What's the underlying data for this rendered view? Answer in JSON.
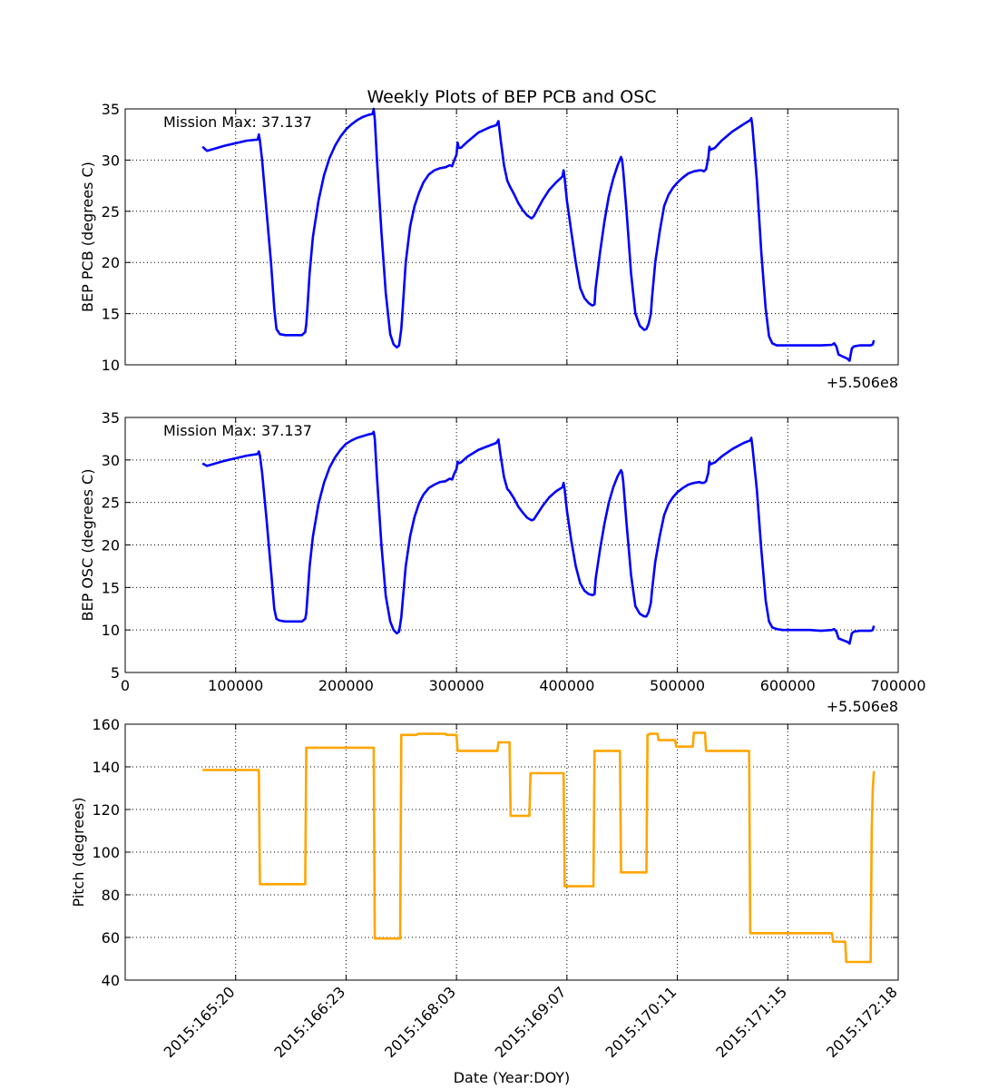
{
  "title": "Weekly Plots of BEP PCB and OSC",
  "colors": {
    "pcb": "#0000ff",
    "osc": "#0000ff",
    "pitch": "#ffa500",
    "grid": "#000000"
  },
  "chart_data": [
    {
      "type": "line",
      "ylabel": "BEP PCB (degrees C)",
      "annotation": "Mission Max: 37.137",
      "offset_label": "+5.506e8",
      "xlim": [
        0,
        700000
      ],
      "ylim": [
        10,
        35
      ],
      "xticks": [
        0,
        100000,
        200000,
        300000,
        400000,
        500000,
        600000,
        700000
      ],
      "yticks": [
        10,
        15,
        20,
        25,
        30,
        35
      ],
      "show_xtick_labels": false,
      "grid": true,
      "series": [
        {
          "x": [
            70000,
            74000,
            90000,
            110000,
            120000,
            121000,
            122000,
            124000,
            128000,
            132000,
            135000,
            137000,
            140000,
            145000,
            150000,
            160000,
            163000,
            164000,
            165000,
            167000,
            170000,
            175000,
            180000,
            185000,
            190000,
            195000,
            200000,
            205000,
            210000,
            215000,
            220000,
            224000,
            225000,
            226000,
            228000,
            232000,
            236000,
            240000,
            243000,
            246000,
            248000,
            250000,
            251000,
            254000,
            258000,
            262000,
            266000,
            270000,
            275000,
            280000,
            285000,
            290000,
            294000,
            296000,
            298000,
            300000,
            301000,
            302000,
            304000,
            310000,
            320000,
            330000,
            336000,
            338000,
            340000,
            343000,
            346000,
            348000,
            352000,
            356000,
            360000,
            364000,
            368000,
            370000,
            374000,
            378000,
            384000,
            390000,
            396000,
            397000,
            398000,
            400000,
            404000,
            408000,
            412000,
            416000,
            420000,
            423000,
            425000,
            426000,
            430000,
            434000,
            438000,
            442000,
            446000,
            449000,
            450000,
            451000,
            454000,
            458000,
            462000,
            466000,
            470000,
            472000,
            474000,
            476000,
            477000,
            480000,
            484000,
            488000,
            492000,
            496000,
            500000,
            505000,
            510000,
            515000,
            520000,
            522000,
            524000,
            526000,
            528000,
            529000,
            530000,
            534000,
            540000,
            550000,
            560000,
            566000,
            567000,
            568000,
            572000,
            576000,
            580000,
            583000,
            586000,
            590000,
            595000,
            600000,
            610000,
            620000,
            630000,
            640000,
            642000,
            644000,
            646000,
            650000,
            654000,
            656000,
            658000,
            660000,
            665000,
            670000,
            675000,
            677000,
            678000
          ],
          "y": [
            31.3,
            30.9,
            31.4,
            31.9,
            32.0,
            32.5,
            31.9,
            30.0,
            25.0,
            20.0,
            15.5,
            13.5,
            13.0,
            12.9,
            12.9,
            12.9,
            13.2,
            14.0,
            15.5,
            19.0,
            22.5,
            26.0,
            28.5,
            30.2,
            31.4,
            32.3,
            33.0,
            33.5,
            33.9,
            34.2,
            34.4,
            34.5,
            35.0,
            34.0,
            30.0,
            23.0,
            17.0,
            13.0,
            12.0,
            11.7,
            11.9,
            13.5,
            15.0,
            20.0,
            23.5,
            25.5,
            26.8,
            27.8,
            28.6,
            29.0,
            29.2,
            29.3,
            29.5,
            29.4,
            30.0,
            30.5,
            31.7,
            31.2,
            31.2,
            31.8,
            32.7,
            33.2,
            33.4,
            33.8,
            32.0,
            29.5,
            28.0,
            27.5,
            26.7,
            25.8,
            25.1,
            24.6,
            24.3,
            24.5,
            25.3,
            26.1,
            27.1,
            27.8,
            28.4,
            29.0,
            28.2,
            26.0,
            23.0,
            20.0,
            17.5,
            16.5,
            16.0,
            15.8,
            15.9,
            17.5,
            21.0,
            24.0,
            26.5,
            28.2,
            29.5,
            30.3,
            30.0,
            29.0,
            25.0,
            19.0,
            15.0,
            13.8,
            13.4,
            13.5,
            14.0,
            15.0,
            16.5,
            20.0,
            23.0,
            25.5,
            26.6,
            27.3,
            27.8,
            28.3,
            28.7,
            28.9,
            29.0,
            29.0,
            28.9,
            29.1,
            30.2,
            31.3,
            31.0,
            31.2,
            31.9,
            32.8,
            33.5,
            33.9,
            34.1,
            33.3,
            28.0,
            21.0,
            15.5,
            12.8,
            12.1,
            11.9,
            11.9,
            11.9,
            11.9,
            11.9,
            11.9,
            11.95,
            12.1,
            11.8,
            11.0,
            10.8,
            10.6,
            10.4,
            11.6,
            11.8,
            11.9,
            11.9,
            11.9,
            12.0,
            12.4
          ]
        }
      ]
    },
    {
      "type": "line",
      "ylabel": "BEP OSC (degrees C)",
      "annotation": "Mission Max: 37.137",
      "offset_label": "+5.506e8",
      "xlim": [
        0,
        700000
      ],
      "ylim": [
        5,
        35
      ],
      "xticks": [
        0,
        100000,
        200000,
        300000,
        400000,
        500000,
        600000,
        700000
      ],
      "xtick_labels": [
        "0",
        "100000",
        "200000",
        "300000",
        "400000",
        "500000",
        "600000",
        "700000"
      ],
      "yticks": [
        5,
        10,
        15,
        20,
        25,
        30,
        35
      ],
      "show_xtick_labels": true,
      "grid": true,
      "series": [
        {
          "x": [
            70000,
            74000,
            90000,
            110000,
            120000,
            121000,
            122000,
            124000,
            128000,
            132000,
            135000,
            137000,
            140000,
            145000,
            150000,
            160000,
            163000,
            164000,
            165000,
            167000,
            170000,
            175000,
            180000,
            185000,
            190000,
            195000,
            200000,
            205000,
            210000,
            215000,
            220000,
            224000,
            225000,
            226000,
            228000,
            232000,
            236000,
            240000,
            243000,
            246000,
            248000,
            250000,
            251000,
            254000,
            258000,
            262000,
            266000,
            270000,
            275000,
            280000,
            285000,
            290000,
            294000,
            296000,
            298000,
            300000,
            301000,
            302000,
            304000,
            310000,
            320000,
            330000,
            336000,
            338000,
            340000,
            343000,
            346000,
            348000,
            352000,
            356000,
            360000,
            364000,
            368000,
            370000,
            374000,
            378000,
            384000,
            390000,
            396000,
            397000,
            398000,
            400000,
            404000,
            408000,
            412000,
            416000,
            420000,
            423000,
            425000,
            426000,
            430000,
            434000,
            438000,
            442000,
            446000,
            449000,
            450000,
            451000,
            454000,
            458000,
            462000,
            466000,
            470000,
            472000,
            474000,
            476000,
            477000,
            480000,
            484000,
            488000,
            492000,
            496000,
            500000,
            505000,
            510000,
            515000,
            520000,
            522000,
            524000,
            526000,
            528000,
            529000,
            530000,
            534000,
            540000,
            550000,
            560000,
            566000,
            567000,
            568000,
            572000,
            576000,
            580000,
            583000,
            586000,
            590000,
            595000,
            600000,
            610000,
            620000,
            630000,
            640000,
            642000,
            644000,
            646000,
            650000,
            654000,
            656000,
            658000,
            660000,
            665000,
            670000,
            675000,
            677000,
            678000
          ],
          "y": [
            29.6,
            29.3,
            29.9,
            30.5,
            30.7,
            31.0,
            30.5,
            28.5,
            23.0,
            17.0,
            12.5,
            11.3,
            11.1,
            11.0,
            11.0,
            11.0,
            11.3,
            12.0,
            13.8,
            17.5,
            21.0,
            24.8,
            27.3,
            29.1,
            30.3,
            31.2,
            31.9,
            32.3,
            32.6,
            32.8,
            33.0,
            33.1,
            33.3,
            32.5,
            28.0,
            20.0,
            14.0,
            11.0,
            10.0,
            9.6,
            9.8,
            11.5,
            13.0,
            17.5,
            21.0,
            23.3,
            24.9,
            25.9,
            26.7,
            27.1,
            27.4,
            27.5,
            27.8,
            27.7,
            28.4,
            28.9,
            29.8,
            29.6,
            29.7,
            30.4,
            31.2,
            31.7,
            32.0,
            32.4,
            30.5,
            28.0,
            26.6,
            26.3,
            25.5,
            24.5,
            23.8,
            23.2,
            22.9,
            23.0,
            23.8,
            24.6,
            25.6,
            26.3,
            26.8,
            27.3,
            26.5,
            24.0,
            20.5,
            17.5,
            15.5,
            14.6,
            14.2,
            14.1,
            14.2,
            16.0,
            19.5,
            22.5,
            25.0,
            26.8,
            28.1,
            28.8,
            28.5,
            27.5,
            22.5,
            16.5,
            12.8,
            11.9,
            11.6,
            11.6,
            12.1,
            13.2,
            14.6,
            18.0,
            21.0,
            23.5,
            24.8,
            25.6,
            26.2,
            26.7,
            27.1,
            27.3,
            27.4,
            27.3,
            27.3,
            27.5,
            28.5,
            29.8,
            29.5,
            29.7,
            30.4,
            31.3,
            32.0,
            32.3,
            32.6,
            31.6,
            26.5,
            19.5,
            13.5,
            11.0,
            10.3,
            10.1,
            10.0,
            10.0,
            10.0,
            10.0,
            9.9,
            10.0,
            10.1,
            9.8,
            9.0,
            8.8,
            8.6,
            8.4,
            9.6,
            9.8,
            9.9,
            9.9,
            9.9,
            10.0,
            10.5
          ]
        }
      ]
    },
    {
      "type": "line",
      "ylabel": "Pitch (degrees)",
      "xlabel": "Date (Year:DOY)",
      "xlim": [
        0,
        700000
      ],
      "ylim": [
        40,
        160
      ],
      "xticks": [
        100000,
        200000,
        300000,
        400000,
        500000,
        600000,
        700000
      ],
      "xtick_labels": [
        "2015:165:20",
        "2015:166:23",
        "2015:168:03",
        "2015:169:07",
        "2015:170:11",
        "2015:171:15",
        "2015:172:18"
      ],
      "yticks": [
        40,
        60,
        80,
        100,
        120,
        140,
        160
      ],
      "show_xtick_labels": true,
      "grid": true,
      "series": [
        {
          "x": [
            70000,
            121000,
            122000,
            163000,
            164000,
            225000,
            226000,
            249000,
            250000,
            264000,
            265000,
            277000,
            278000,
            290000,
            291000,
            300000,
            301000,
            337000,
            338000,
            348000,
            349000,
            360000,
            361000,
            366000,
            367000,
            397000,
            398000,
            420000,
            421000,
            424000,
            425000,
            448000,
            449000,
            472000,
            473000,
            474000,
            475000,
            482000,
            483000,
            498000,
            499000,
            514000,
            515000,
            525000,
            526000,
            565000,
            566000,
            640000,
            641000,
            652000,
            653000,
            675000,
            676000,
            677000,
            678000
          ],
          "y": [
            138.5,
            138.5,
            85,
            85,
            149,
            149,
            59.5,
            59.5,
            155,
            155,
            155.5,
            155.5,
            155.5,
            155.5,
            155,
            155,
            147.5,
            147.5,
            151.5,
            151.5,
            117,
            117,
            117,
            117,
            137,
            137,
            84,
            84,
            84,
            84,
            147.5,
            147.5,
            90.5,
            90.5,
            155,
            155,
            155.5,
            155.5,
            152.5,
            152.5,
            149.5,
            149.5,
            156,
            156,
            147.5,
            147.5,
            62,
            62,
            58,
            58,
            48.5,
            48.5,
            110,
            130,
            138
          ]
        }
      ]
    }
  ]
}
